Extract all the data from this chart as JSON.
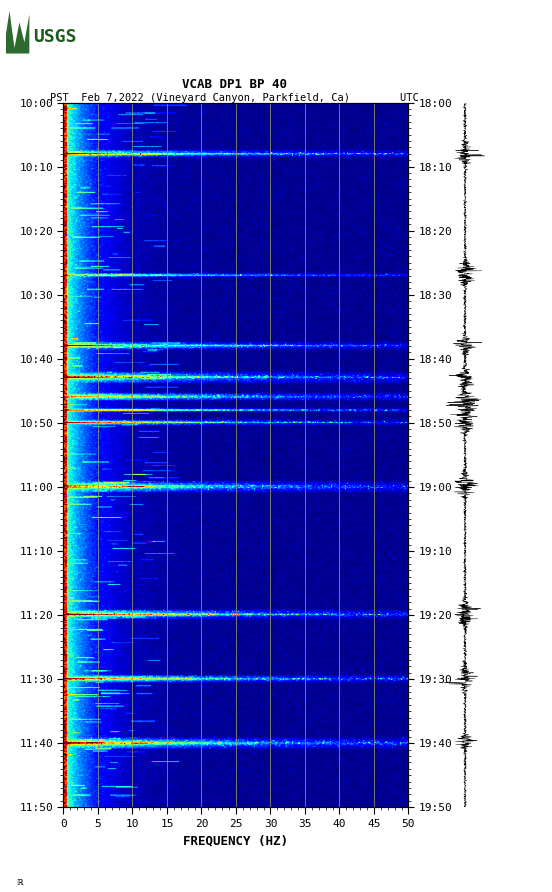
{
  "title_line1": "VCAB DP1 BP 40",
  "title_line2": "PST  Feb 7,2022 (Vineyard Canyon, Parkfield, Ca)        UTC",
  "xlabel": "FREQUENCY (HZ)",
  "left_time_labels": [
    "10:00",
    "10:10",
    "10:20",
    "10:30",
    "10:40",
    "10:50",
    "11:00",
    "11:10",
    "11:20",
    "11:30",
    "11:40",
    "11:50"
  ],
  "right_time_labels": [
    "18:00",
    "18:10",
    "18:20",
    "18:30",
    "18:40",
    "18:50",
    "19:00",
    "19:10",
    "19:20",
    "19:30",
    "19:40",
    "19:50"
  ],
  "freq_ticks": [
    0,
    5,
    10,
    15,
    20,
    25,
    30,
    35,
    40,
    45,
    50
  ],
  "freq_range": [
    0,
    50
  ],
  "time_minutes": 110,
  "colormap": "jet",
  "background_color": "#ffffff",
  "vertical_line_color": "#999966",
  "vertical_line_freqs": [
    5,
    10,
    15,
    20,
    25,
    30,
    35,
    40,
    45
  ],
  "fig_width": 5.52,
  "fig_height": 8.92,
  "event_times_min": [
    8,
    27,
    38,
    43,
    46,
    48,
    50,
    60,
    80,
    90,
    100
  ],
  "spectrogram_seed": 1234
}
